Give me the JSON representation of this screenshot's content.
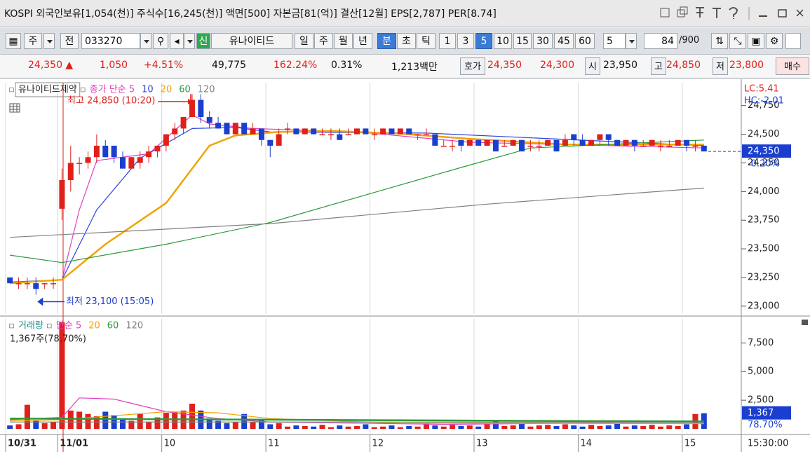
{
  "title_bar": {
    "text": "KOSPI 외국인보유[1,054(천)] 주식수[16,245(천)] 액면[500] 자본금[81(억)] 결산[12월] EPS[2,787] PER[8.74]"
  },
  "toolbar": {
    "period": "주",
    "prev": "전",
    "code": "033270",
    "badge": "신",
    "stock": "유나이티드",
    "units": [
      "일",
      "주",
      "월",
      "년",
      "분",
      "초",
      "틱"
    ],
    "minutes": [
      "1",
      "3",
      "5",
      "10",
      "15",
      "30",
      "45",
      "60"
    ],
    "interval": "5",
    "count": "84",
    "max": "/900"
  },
  "quote": {
    "price": "24,350 ▲",
    "change": "1,050",
    "rate": "+4.51%",
    "volume": "49,775",
    "volume_rate": "162.24%",
    "turnover": "0.31%",
    "amount": "1,213백만",
    "bid_label": "호가",
    "ask": "24,350",
    "bid": "24,300",
    "open_label": "시",
    "open": "23,950",
    "high_label": "고",
    "high": "24,850",
    "low_label": "저",
    "low": "23,800",
    "buy": "매수"
  },
  "chart_data": [
    {
      "type": "candlestick",
      "name": "유나이티드제약",
      "categories": [
        "10/31",
        null,
        null,
        null,
        null,
        null,
        "11/01",
        null,
        null,
        null,
        null,
        null,
        null,
        null,
        null,
        null,
        null,
        null,
        "10",
        null,
        null,
        null,
        null,
        null,
        null,
        null,
        null,
        null,
        null,
        null,
        "11",
        null,
        null,
        null,
        null,
        null,
        null,
        null,
        null,
        null,
        null,
        null,
        "12",
        null,
        null,
        null,
        null,
        null,
        null,
        null,
        null,
        null,
        null,
        null,
        "13",
        null,
        null,
        null,
        null,
        null,
        null,
        null,
        null,
        null,
        null,
        null,
        "14",
        null,
        null,
        null,
        null,
        null,
        null,
        null,
        null,
        null,
        null,
        null,
        "15",
        null,
        null
      ],
      "candles": [
        [
          23250,
          23250,
          23200,
          23200
        ],
        [
          23200,
          23250,
          23150,
          23200
        ],
        [
          23200,
          23250,
          23150,
          23200
        ],
        [
          23200,
          23250,
          23100,
          23150
        ],
        [
          23200,
          23200,
          23150,
          23200
        ],
        [
          23200,
          23250,
          23150,
          23200
        ],
        [
          23850,
          24200,
          23750,
          24100
        ],
        [
          24100,
          24400,
          24000,
          24250
        ],
        [
          24250,
          24300,
          24150,
          24250
        ],
        [
          24250,
          24350,
          24200,
          24300
        ],
        [
          24300,
          24500,
          24250,
          24400
        ],
        [
          24400,
          24450,
          24300,
          24300
        ],
        [
          24400,
          24400,
          24250,
          24300
        ],
        [
          24300,
          24350,
          24200,
          24200
        ],
        [
          24200,
          24300,
          24200,
          24300
        ],
        [
          24250,
          24350,
          24200,
          24300
        ],
        [
          24300,
          24400,
          24250,
          24350
        ],
        [
          24350,
          24400,
          24300,
          24400
        ],
        [
          24400,
          24500,
          24350,
          24500
        ],
        [
          24500,
          24600,
          24450,
          24550
        ],
        [
          24550,
          24650,
          24500,
          24650
        ],
        [
          24650,
          24850,
          24650,
          24800
        ],
        [
          24800,
          24850,
          24600,
          24650
        ],
        [
          24650,
          24700,
          24550,
          24600
        ],
        [
          24600,
          24650,
          24550,
          24550
        ],
        [
          24600,
          24600,
          24500,
          24500
        ],
        [
          24500,
          24600,
          24500,
          24600
        ],
        [
          24600,
          24600,
          24500,
          24500
        ],
        [
          24500,
          24600,
          24500,
          24550
        ],
        [
          24550,
          24550,
          24400,
          24450
        ],
        [
          24450,
          24450,
          24300,
          24400
        ],
        [
          24400,
          24550,
          24400,
          24500
        ],
        [
          24550,
          24600,
          24500,
          24550
        ],
        [
          24550,
          24550,
          24500,
          24500
        ],
        [
          24500,
          24550,
          24500,
          24550
        ],
        [
          24550,
          24550,
          24500,
          24500
        ],
        [
          24500,
          24550,
          24500,
          24500
        ],
        [
          24500,
          24550,
          24450,
          24500
        ],
        [
          24500,
          24550,
          24450,
          24450
        ],
        [
          24500,
          24550,
          24500,
          24500
        ],
        [
          24500,
          24550,
          24500,
          24550
        ],
        [
          24550,
          24550,
          24500,
          24500
        ],
        [
          24500,
          24550,
          24450,
          24500
        ],
        [
          24500,
          24550,
          24500,
          24550
        ],
        [
          24550,
          24550,
          24500,
          24500
        ],
        [
          24500,
          24550,
          24500,
          24550
        ],
        [
          24550,
          24550,
          24500,
          24500
        ],
        [
          24500,
          24500,
          24450,
          24500
        ],
        [
          24500,
          24550,
          24500,
          24500
        ],
        [
          24500,
          24500,
          24400,
          24400
        ],
        [
          24400,
          24450,
          24400,
          24400
        ],
        [
          24400,
          24450,
          24350,
          24400
        ],
        [
          24450,
          24450,
          24350,
          24400
        ],
        [
          24400,
          24450,
          24400,
          24450
        ],
        [
          24450,
          24450,
          24400,
          24400
        ],
        [
          24400,
          24450,
          24400,
          24450
        ],
        [
          24450,
          24450,
          24350,
          24350
        ],
        [
          24400,
          24450,
          24400,
          24400
        ],
        [
          24400,
          24450,
          24400,
          24450
        ],
        [
          24450,
          24450,
          24350,
          24350
        ],
        [
          24400,
          24450,
          24350,
          24400
        ],
        [
          24400,
          24450,
          24350,
          24400
        ],
        [
          24400,
          24450,
          24400,
          24450
        ],
        [
          24450,
          24450,
          24350,
          24350
        ],
        [
          24400,
          24500,
          24400,
          24450
        ],
        [
          24500,
          24500,
          24400,
          24450
        ],
        [
          24450,
          24500,
          24400,
          24400
        ],
        [
          24400,
          24450,
          24400,
          24450
        ],
        [
          24450,
          24500,
          24400,
          24500
        ],
        [
          24500,
          24500,
          24400,
          24450
        ],
        [
          24450,
          24450,
          24400,
          24400
        ],
        [
          24400,
          24450,
          24400,
          24450
        ],
        [
          24450,
          24450,
          24350,
          24400
        ],
        [
          24400,
          24450,
          24400,
          24400
        ],
        [
          24400,
          24450,
          24400,
          24450
        ],
        [
          24400,
          24450,
          24350,
          24400
        ],
        [
          24400,
          24450,
          24400,
          24400
        ],
        [
          24400,
          24450,
          24400,
          24450
        ],
        [
          24450,
          24450,
          24350,
          24400
        ],
        [
          24400,
          24450,
          24350,
          24400
        ],
        [
          24400,
          24400,
          24350,
          24350
        ]
      ],
      "up_color": "#e0201a",
      "down_color": "#1a3fd0",
      "series": [
        {
          "name": "종가 단순 5",
          "color": "#e040c0",
          "x": [
            0,
            6,
            8,
            10,
            16,
            21,
            23,
            28,
            40,
            53,
            80
          ],
          "values": [
            23200,
            23230,
            23840,
            24270,
            24330,
            24670,
            24590,
            24550,
            24520,
            24430,
            24380
          ]
        },
        {
          "name": "10",
          "color": "#2a44d8",
          "x": [
            0,
            6,
            10,
            15,
            21,
            26,
            30,
            48,
            80
          ],
          "values": [
            23210,
            23230,
            23840,
            24290,
            24550,
            24560,
            24520,
            24510,
            24400
          ]
        },
        {
          "name": "20",
          "color": "#f0a400",
          "x": [
            0,
            6,
            11,
            18,
            23,
            26,
            31,
            37,
            45,
            53,
            64,
            80
          ],
          "values": [
            23200,
            23230,
            23540,
            23900,
            24400,
            24490,
            24520,
            24530,
            24505,
            24460,
            24410,
            24410
          ]
        },
        {
          "name": "60",
          "color": "#2a9a3a",
          "x": [
            0,
            6,
            18,
            30,
            41,
            52,
            60,
            80
          ],
          "values": [
            23445,
            23380,
            23540,
            23730,
            23970,
            24210,
            24380,
            24450
          ]
        },
        {
          "name": "120",
          "color": "#808080",
          "x": [
            0,
            30,
            55,
            80
          ],
          "values": [
            23600,
            23720,
            23890,
            24030
          ]
        }
      ],
      "ylim": [
        22950,
        24950
      ],
      "yticks": [
        {
          "value": 23000,
          "label": "23,000"
        },
        {
          "value": 23250,
          "label": "23,250"
        },
        {
          "value": 23500,
          "label": "23,500"
        },
        {
          "value": 23750,
          "label": "23,750"
        },
        {
          "value": 24000,
          "label": "24,000"
        },
        {
          "value": 24250,
          "label": "24,250"
        },
        {
          "value": 24500,
          "label": "24,500"
        },
        {
          "value": 24750,
          "label": "24,750"
        }
      ],
      "annotations": [
        "최고 24,850 (10:20)",
        "최저 23,100 (15:05)"
      ],
      "lc_label": "LC:5.41",
      "hc_label": "HC:-2.01",
      "last_label": "24,350",
      "change_label": "-0.20%"
    },
    {
      "type": "bar",
      "name": "거래량",
      "values": [
        300,
        400,
        2100,
        700,
        500,
        600,
        9300,
        1600,
        1500,
        1300,
        1100,
        1500,
        1200,
        900,
        700,
        1300,
        600,
        1000,
        1400,
        1500,
        1600,
        2200,
        1600,
        900,
        700,
        500,
        600,
        1300,
        600,
        800,
        400,
        500,
        200,
        300,
        250,
        200,
        350,
        150,
        300,
        200,
        250,
        400,
        150,
        200,
        300,
        150,
        250,
        200,
        500,
        300,
        200,
        350,
        250,
        300,
        200,
        400,
        700,
        250,
        300,
        450,
        200,
        300,
        350,
        250,
        400,
        300,
        200,
        350,
        250,
        300,
        450,
        200,
        300,
        250,
        350,
        200,
        300,
        250,
        400,
        1300,
        1367
      ],
      "series": [
        {
          "name": "단순 5",
          "color": "#e040c0",
          "x": [
            0,
            6,
            8,
            12,
            18,
            24,
            30,
            50,
            80
          ],
          "values": [
            800,
            1000,
            2700,
            2600,
            1500,
            900,
            600,
            400,
            600
          ]
        },
        {
          "name": "20",
          "color": "#f0a400",
          "x": [
            0,
            6,
            18,
            24,
            30,
            45,
            80
          ],
          "values": [
            700,
            800,
            1500,
            1400,
            900,
            500,
            450
          ]
        },
        {
          "name": "60",
          "color": "#2a9a3a",
          "x": [
            0,
            30,
            60,
            80
          ],
          "values": [
            900,
            800,
            700,
            650
          ]
        },
        {
          "name": "120",
          "color": "#808080",
          "x": [
            0,
            40,
            80
          ],
          "values": [
            600,
            600,
            550
          ]
        }
      ],
      "ylim": [
        0,
        9600
      ],
      "yticks": [
        {
          "value": 2500,
          "label": "2,500"
        },
        {
          "value": 5000,
          "label": "5,000"
        },
        {
          "value": 7500,
          "label": "7,500"
        }
      ],
      "info": "1,367주(78.70%)",
      "last_label": "1,367",
      "ratio_label": "78.70%",
      "time_label": "15:30:00"
    }
  ]
}
